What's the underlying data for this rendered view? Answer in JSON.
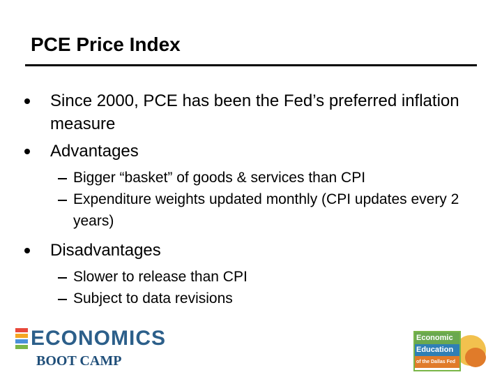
{
  "title": "PCE Price Index",
  "bullets": [
    {
      "text": "Since 2000, PCE has been the Fed’s preferred inflation measure",
      "sub": []
    },
    {
      "text": "Advantages",
      "sub": [
        "Bigger “basket” of goods & services than CPI",
        "Expenditure weights updated monthly (CPI updates every 2 years)"
      ]
    },
    {
      "text": "Disadvantages",
      "sub": [
        "Slower to release than CPI",
        "Subject to data revisions"
      ]
    }
  ],
  "logos": {
    "left": {
      "word": "ECONOMICS",
      "tagline": "BOOT CAMP"
    },
    "right": {
      "line1": "Economic",
      "line2": "Education",
      "line3": "of the Dallas Fed"
    }
  }
}
